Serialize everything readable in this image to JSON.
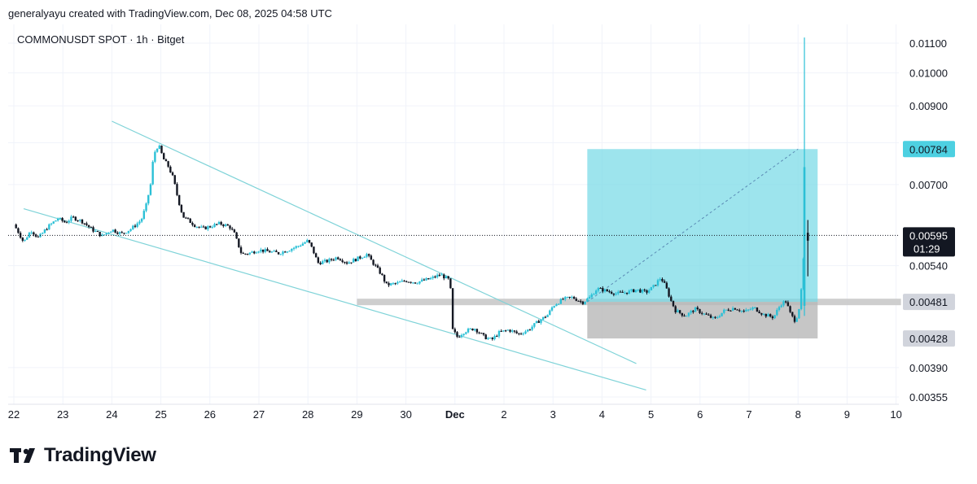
{
  "caption": "generalyayu created with TradingView.com, Dec 08, 2025 04:58 UTC",
  "brand": "TradingView",
  "chart_data": {
    "type": "candlestick",
    "title": "COMMONUSDT SPOT · 1h · Bitget",
    "y_ticks": [
      "0.01100",
      "0.01000",
      "0.00900",
      "0.00700",
      "0.00540",
      "0.00390",
      "0.00355"
    ],
    "y_tick_values": [
      0.011,
      0.01,
      0.009,
      0.007,
      0.0054,
      0.0039,
      0.00355
    ],
    "x_ticks": [
      "22",
      "23",
      "24",
      "25",
      "26",
      "27",
      "28",
      "29",
      "30",
      "Dec",
      "2",
      "3",
      "4",
      "5",
      "6",
      "7",
      "8",
      "9",
      "10"
    ],
    "x_tick_index": [
      0,
      1,
      2,
      3,
      4,
      5,
      6,
      7,
      8,
      9,
      10,
      11,
      12,
      13,
      14,
      15,
      16,
      17,
      18
    ],
    "current_price": {
      "label": "0.00595",
      "countdown": "01:29",
      "value": 0.00595
    },
    "position": {
      "target_label": "0.00784",
      "target": 0.00784,
      "entry_label": "0.00481",
      "entry": 0.00481,
      "stop_label": "0.00428",
      "stop": 0.00428,
      "start_day": 11.7,
      "end_day": 16.4
    },
    "support_zone": {
      "low": 0.00476,
      "high": 0.00486,
      "start_day": 7.0,
      "end_day": 18.1
    },
    "trendlines": [
      {
        "from": [
          2.0,
          0.00857
        ],
        "to": [
          12.7,
          0.00395
        ]
      },
      {
        "from": [
          0.2,
          0.00648
        ],
        "to": [
          12.9,
          0.00363
        ]
      }
    ],
    "price_path": [
      [
        0.0,
        0.00616
      ],
      [
        0.1,
        0.006
      ],
      [
        0.2,
        0.00582
      ],
      [
        0.35,
        0.00605
      ],
      [
        0.5,
        0.0059
      ],
      [
        0.7,
        0.00612
      ],
      [
        0.9,
        0.00628
      ],
      [
        1.05,
        0.0062
      ],
      [
        1.2,
        0.0063
      ],
      [
        1.4,
        0.00622
      ],
      [
        1.6,
        0.00606
      ],
      [
        1.8,
        0.00594
      ],
      [
        2.0,
        0.00606
      ],
      [
        2.2,
        0.00598
      ],
      [
        2.4,
        0.00608
      ],
      [
        2.6,
        0.00625
      ],
      [
        2.7,
        0.00655
      ],
      [
        2.8,
        0.00705
      ],
      [
        2.85,
        0.0077
      ],
      [
        2.95,
        0.00795
      ],
      [
        3.05,
        0.0076
      ],
      [
        3.15,
        0.00742
      ],
      [
        3.25,
        0.00715
      ],
      [
        3.35,
        0.00668
      ],
      [
        3.45,
        0.00632
      ],
      [
        3.55,
        0.00625
      ],
      [
        3.7,
        0.00614
      ],
      [
        3.85,
        0.00608
      ],
      [
        4.0,
        0.00612
      ],
      [
        4.2,
        0.00618
      ],
      [
        4.4,
        0.00612
      ],
      [
        4.5,
        0.00598
      ],
      [
        4.6,
        0.00572
      ],
      [
        4.65,
        0.0056
      ],
      [
        4.8,
        0.00562
      ],
      [
        5.0,
        0.00568
      ],
      [
        5.2,
        0.00565
      ],
      [
        5.4,
        0.00562
      ],
      [
        5.6,
        0.00568
      ],
      [
        5.8,
        0.00575
      ],
      [
        6.0,
        0.00585
      ],
      [
        6.1,
        0.00568
      ],
      [
        6.2,
        0.00545
      ],
      [
        6.4,
        0.00548
      ],
      [
        6.6,
        0.00555
      ],
      [
        6.8,
        0.00545
      ],
      [
        7.0,
        0.00552
      ],
      [
        7.2,
        0.0056
      ],
      [
        7.3,
        0.00548
      ],
      [
        7.5,
        0.00525
      ],
      [
        7.6,
        0.00508
      ],
      [
        7.8,
        0.0051
      ],
      [
        8.0,
        0.00515
      ],
      [
        8.2,
        0.00512
      ],
      [
        8.5,
        0.00518
      ],
      [
        8.7,
        0.00525
      ],
      [
        8.9,
        0.00515
      ],
      [
        8.95,
        0.0044
      ],
      [
        9.05,
        0.0043
      ],
      [
        9.2,
        0.00438
      ],
      [
        9.4,
        0.00442
      ],
      [
        9.6,
        0.0043
      ],
      [
        9.75,
        0.00426
      ],
      [
        9.9,
        0.00436
      ],
      [
        10.1,
        0.0044
      ],
      [
        10.3,
        0.00434
      ],
      [
        10.5,
        0.0044
      ],
      [
        10.7,
        0.00452
      ],
      [
        10.9,
        0.00462
      ],
      [
        11.0,
        0.00475
      ],
      [
        11.2,
        0.00485
      ],
      [
        11.4,
        0.00488
      ],
      [
        11.6,
        0.0048
      ],
      [
        11.75,
        0.00488
      ],
      [
        11.9,
        0.00502
      ],
      [
        12.1,
        0.00498
      ],
      [
        12.3,
        0.00494
      ],
      [
        12.5,
        0.00496
      ],
      [
        12.7,
        0.005
      ],
      [
        12.9,
        0.00496
      ],
      [
        13.05,
        0.00505
      ],
      [
        13.2,
        0.0052
      ],
      [
        13.3,
        0.00505
      ],
      [
        13.4,
        0.00484
      ],
      [
        13.5,
        0.00468
      ],
      [
        13.7,
        0.0046
      ],
      [
        13.9,
        0.0047
      ],
      [
        14.1,
        0.00462
      ],
      [
        14.3,
        0.00455
      ],
      [
        14.5,
        0.00468
      ],
      [
        14.7,
        0.00472
      ],
      [
        14.9,
        0.00466
      ],
      [
        15.1,
        0.00472
      ],
      [
        15.3,
        0.00462
      ],
      [
        15.5,
        0.00458
      ],
      [
        15.65,
        0.00478
      ],
      [
        15.75,
        0.00482
      ],
      [
        15.85,
        0.00462
      ],
      [
        15.95,
        0.00452
      ],
      [
        16.0,
        0.00466
      ],
      [
        16.05,
        0.0048
      ],
      [
        16.1,
        0.0054
      ],
      [
        16.15,
        0.00595
      ]
    ]
  }
}
